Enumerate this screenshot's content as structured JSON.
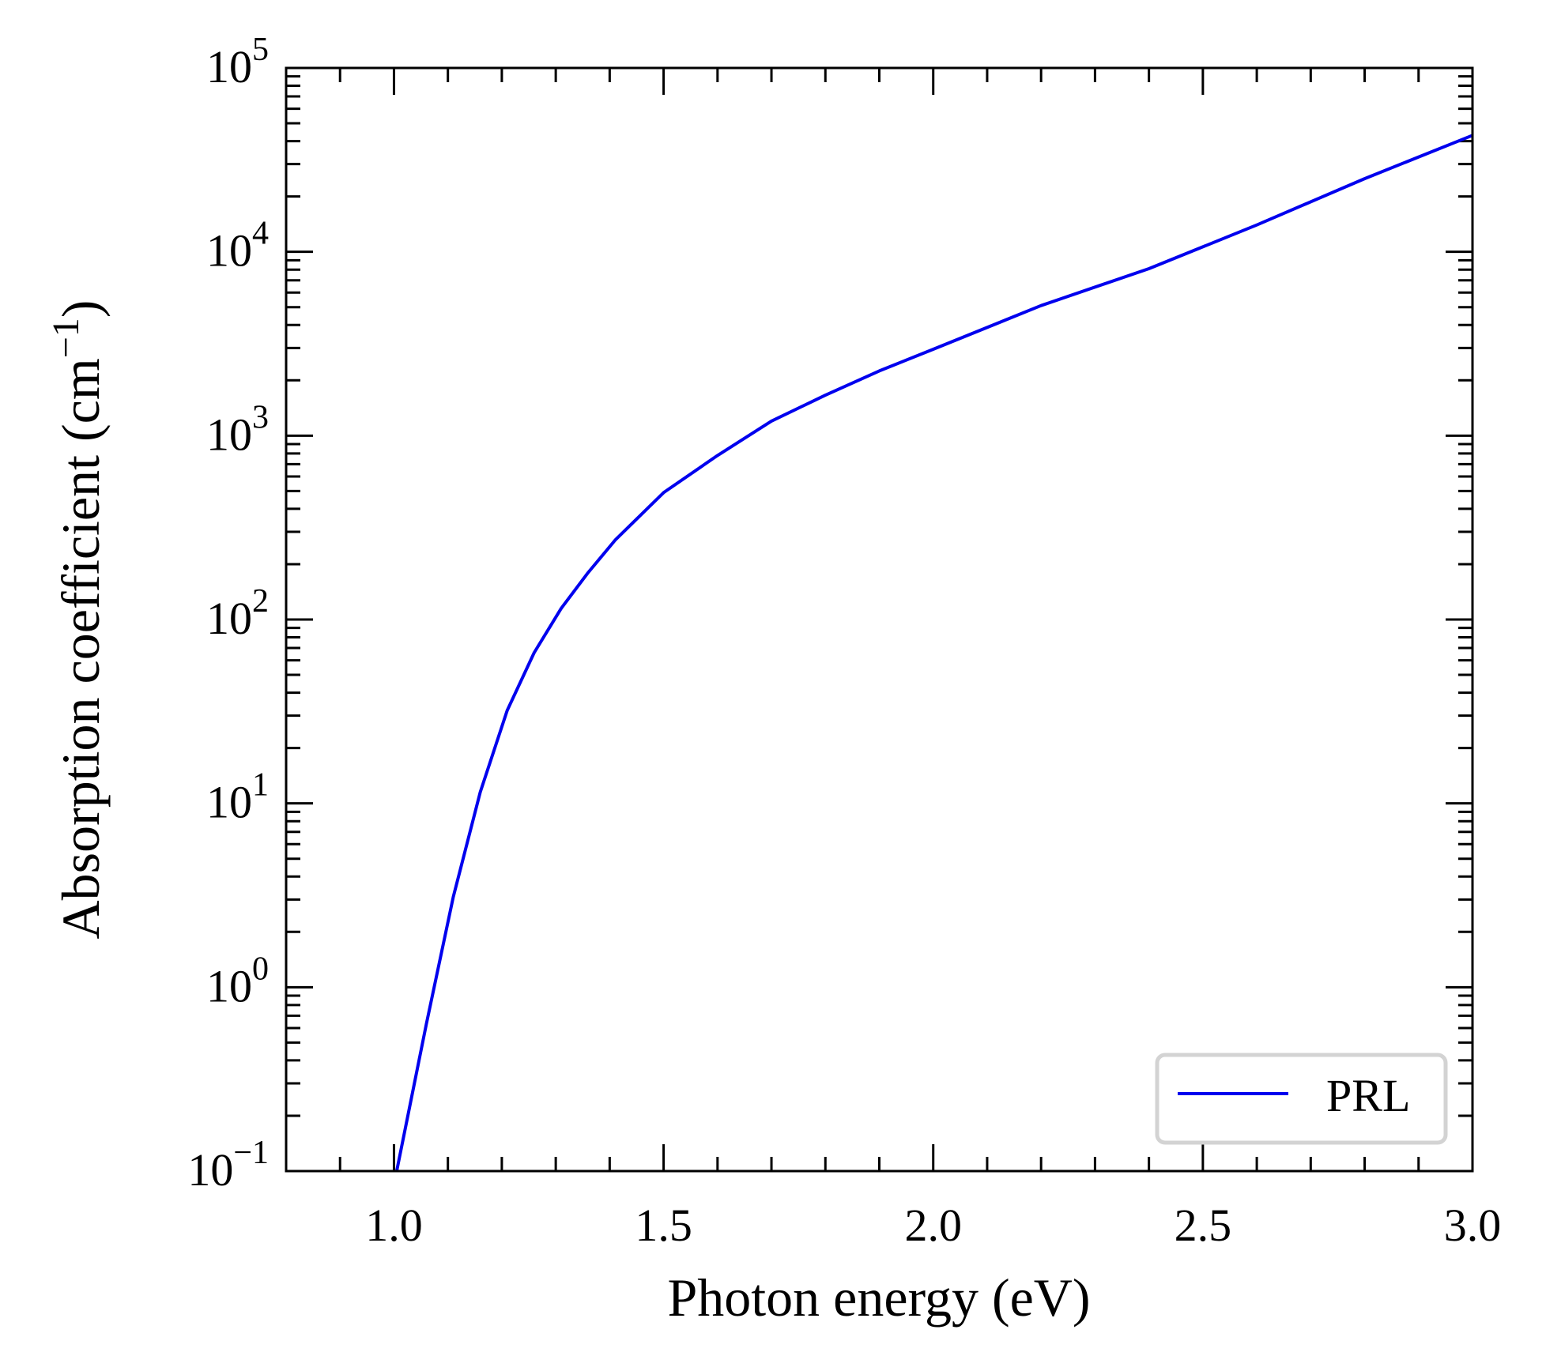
{
  "chart_data": {
    "type": "line",
    "title": "",
    "xlabel": "Photon energy (eV)",
    "ylabel_main": "Absorption coefficient (cm",
    "ylabel_sup": "−1",
    "ylabel_end": ")",
    "xlim": [
      0.8,
      3.0
    ],
    "ylim": [
      0.1,
      100000
    ],
    "yscale": "log",
    "grid": false,
    "legend_placement": "lower-right",
    "x_ticks": [
      1.0,
      1.5,
      2.0,
      2.5,
      3.0
    ],
    "x_tick_labels": [
      "1.0",
      "1.5",
      "2.0",
      "2.5",
      "3.0"
    ],
    "y_tick_exponents": [
      -1,
      0,
      1,
      2,
      3,
      4,
      5
    ],
    "y_tick_labels": [
      {
        "base": "10",
        "exp": "−1"
      },
      {
        "base": "10",
        "exp": "0"
      },
      {
        "base": "10",
        "exp": "1"
      },
      {
        "base": "10",
        "exp": "2"
      },
      {
        "base": "10",
        "exp": "3"
      },
      {
        "base": "10",
        "exp": "4"
      },
      {
        "base": "10",
        "exp": "5"
      }
    ],
    "series": [
      {
        "name": "PRL",
        "color": "#0000ee",
        "x": [
          1.005,
          1.06,
          1.11,
          1.16,
          1.21,
          1.26,
          1.31,
          1.36,
          1.41,
          1.5,
          1.6,
          1.7,
          1.8,
          1.9,
          2.0,
          2.2,
          2.4,
          2.6,
          2.8,
          3.0
        ],
        "y": [
          0.1,
          0.63,
          3.1,
          11.5,
          32,
          66,
          115,
          180,
          270,
          490,
          780,
          1200,
          1660,
          2250,
          2950,
          5100,
          8100,
          14000,
          25000,
          43000
        ]
      }
    ]
  }
}
